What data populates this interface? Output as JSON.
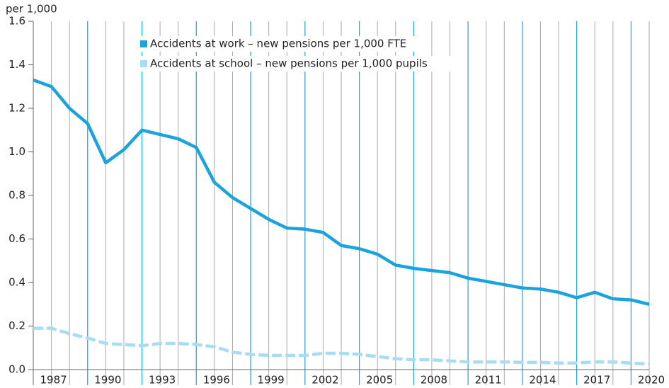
{
  "chart_data": {
    "type": "line",
    "y_unit_label": "per 1,000",
    "x": [
      1986,
      1987,
      1988,
      1989,
      1990,
      1991,
      1992,
      1993,
      1994,
      1995,
      1996,
      1997,
      1998,
      1999,
      2000,
      2001,
      2002,
      2003,
      2004,
      2005,
      2006,
      2007,
      2008,
      2009,
      2010,
      2011,
      2012,
      2013,
      2014,
      2015,
      2016,
      2017,
      2018,
      2019,
      2020
    ],
    "series": [
      {
        "name": "Accidents at work – new pensions per 1,000 FTE",
        "color": "#1aa3dc",
        "dashed": false,
        "values": [
          1.33,
          1.3,
          1.2,
          1.13,
          0.95,
          1.01,
          1.1,
          1.08,
          1.06,
          1.02,
          0.86,
          0.79,
          0.74,
          0.69,
          0.65,
          0.645,
          0.63,
          0.57,
          0.555,
          0.53,
          0.48,
          0.465,
          0.455,
          0.445,
          0.42,
          0.405,
          0.39,
          0.375,
          0.37,
          0.355,
          0.33,
          0.355,
          0.325,
          0.32,
          0.3
        ]
      },
      {
        "name": "Accidents at school – new pensions per 1,000 pupils",
        "color": "#a8dcf2",
        "dashed": true,
        "values": [
          0.19,
          0.19,
          0.165,
          0.145,
          0.12,
          0.115,
          0.11,
          0.12,
          0.12,
          0.115,
          0.105,
          0.08,
          0.07,
          0.065,
          0.065,
          0.065,
          0.075,
          0.075,
          0.07,
          0.06,
          0.05,
          0.045,
          0.045,
          0.04,
          0.035,
          0.035,
          0.035,
          0.033,
          0.033,
          0.03,
          0.03,
          0.035,
          0.035,
          0.03,
          0.025
        ]
      }
    ],
    "xlim": [
      1986,
      2020
    ],
    "xticks": [
      1987,
      1990,
      1993,
      1996,
      1999,
      2002,
      2005,
      2008,
      2011,
      2014,
      2017,
      2020
    ],
    "xgrid_major": [
      1989,
      1992,
      1995,
      1998,
      2001,
      2004,
      2007,
      2010,
      2013,
      2016,
      2019
    ],
    "major_grid_color": "#1aa3dc",
    "ylim": [
      0,
      1.6
    ],
    "yticks": [
      {
        "value": 0,
        "label": "0.0"
      },
      0.2,
      0.4,
      0.6,
      0.8,
      {
        "value": 1,
        "label": "1.0"
      },
      1.2,
      1.4,
      1.6
    ],
    "grid": true
  }
}
